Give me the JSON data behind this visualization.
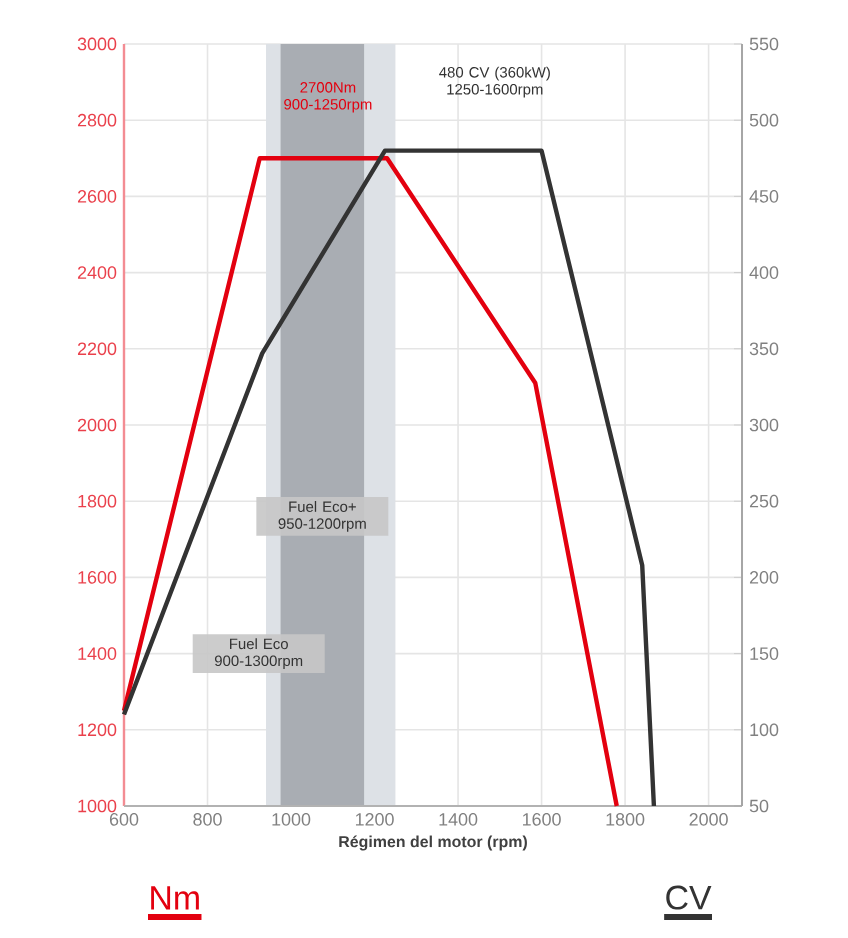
{
  "chart_data": {
    "type": "line",
    "xlabel": "Régimen del motor (rpm)",
    "series": [
      {
        "name": "Nm",
        "color": "#e3000f",
        "x": [
          600,
          925,
          1230,
          1585,
          1780
        ],
        "values": [
          1250,
          2700,
          2700,
          2110,
          1000
        ]
      },
      {
        "name": "CV",
        "color": "#333333",
        "axis": "y2",
        "x": [
          600,
          931,
          1225,
          1600,
          1841,
          1869
        ],
        "values": [
          110,
          347,
          480,
          480,
          208,
          50
        ]
      }
    ],
    "xlim": [
      600,
      2080
    ],
    "xticks": [
      600,
      800,
      1000,
      1200,
      1400,
      1600,
      1800,
      2000
    ],
    "ylim": [
      1000,
      3000
    ],
    "yticks": [
      1000,
      1200,
      1400,
      1600,
      1800,
      2000,
      2200,
      2400,
      2600,
      2800,
      3000
    ],
    "y2lim": [
      50,
      550
    ],
    "y2ticks": [
      50,
      100,
      150,
      200,
      250,
      300,
      350,
      400,
      450,
      500,
      550
    ],
    "bands": [
      {
        "axis": "x",
        "from": 940,
        "to": 1250,
        "label": "Fuel Eco 900-1300rpm",
        "color": "#dde1e6"
      },
      {
        "axis": "x",
        "from": 975,
        "to": 1175,
        "label": "Fuel Eco+ 950-1200rpm",
        "color": "#a9adb3"
      }
    ],
    "annotations": [
      "2700Nm 900-1250rpm",
      "480 CV (360kW) 1250-1600rpm"
    ],
    "grid": true,
    "legend": "bottom"
  }
}
